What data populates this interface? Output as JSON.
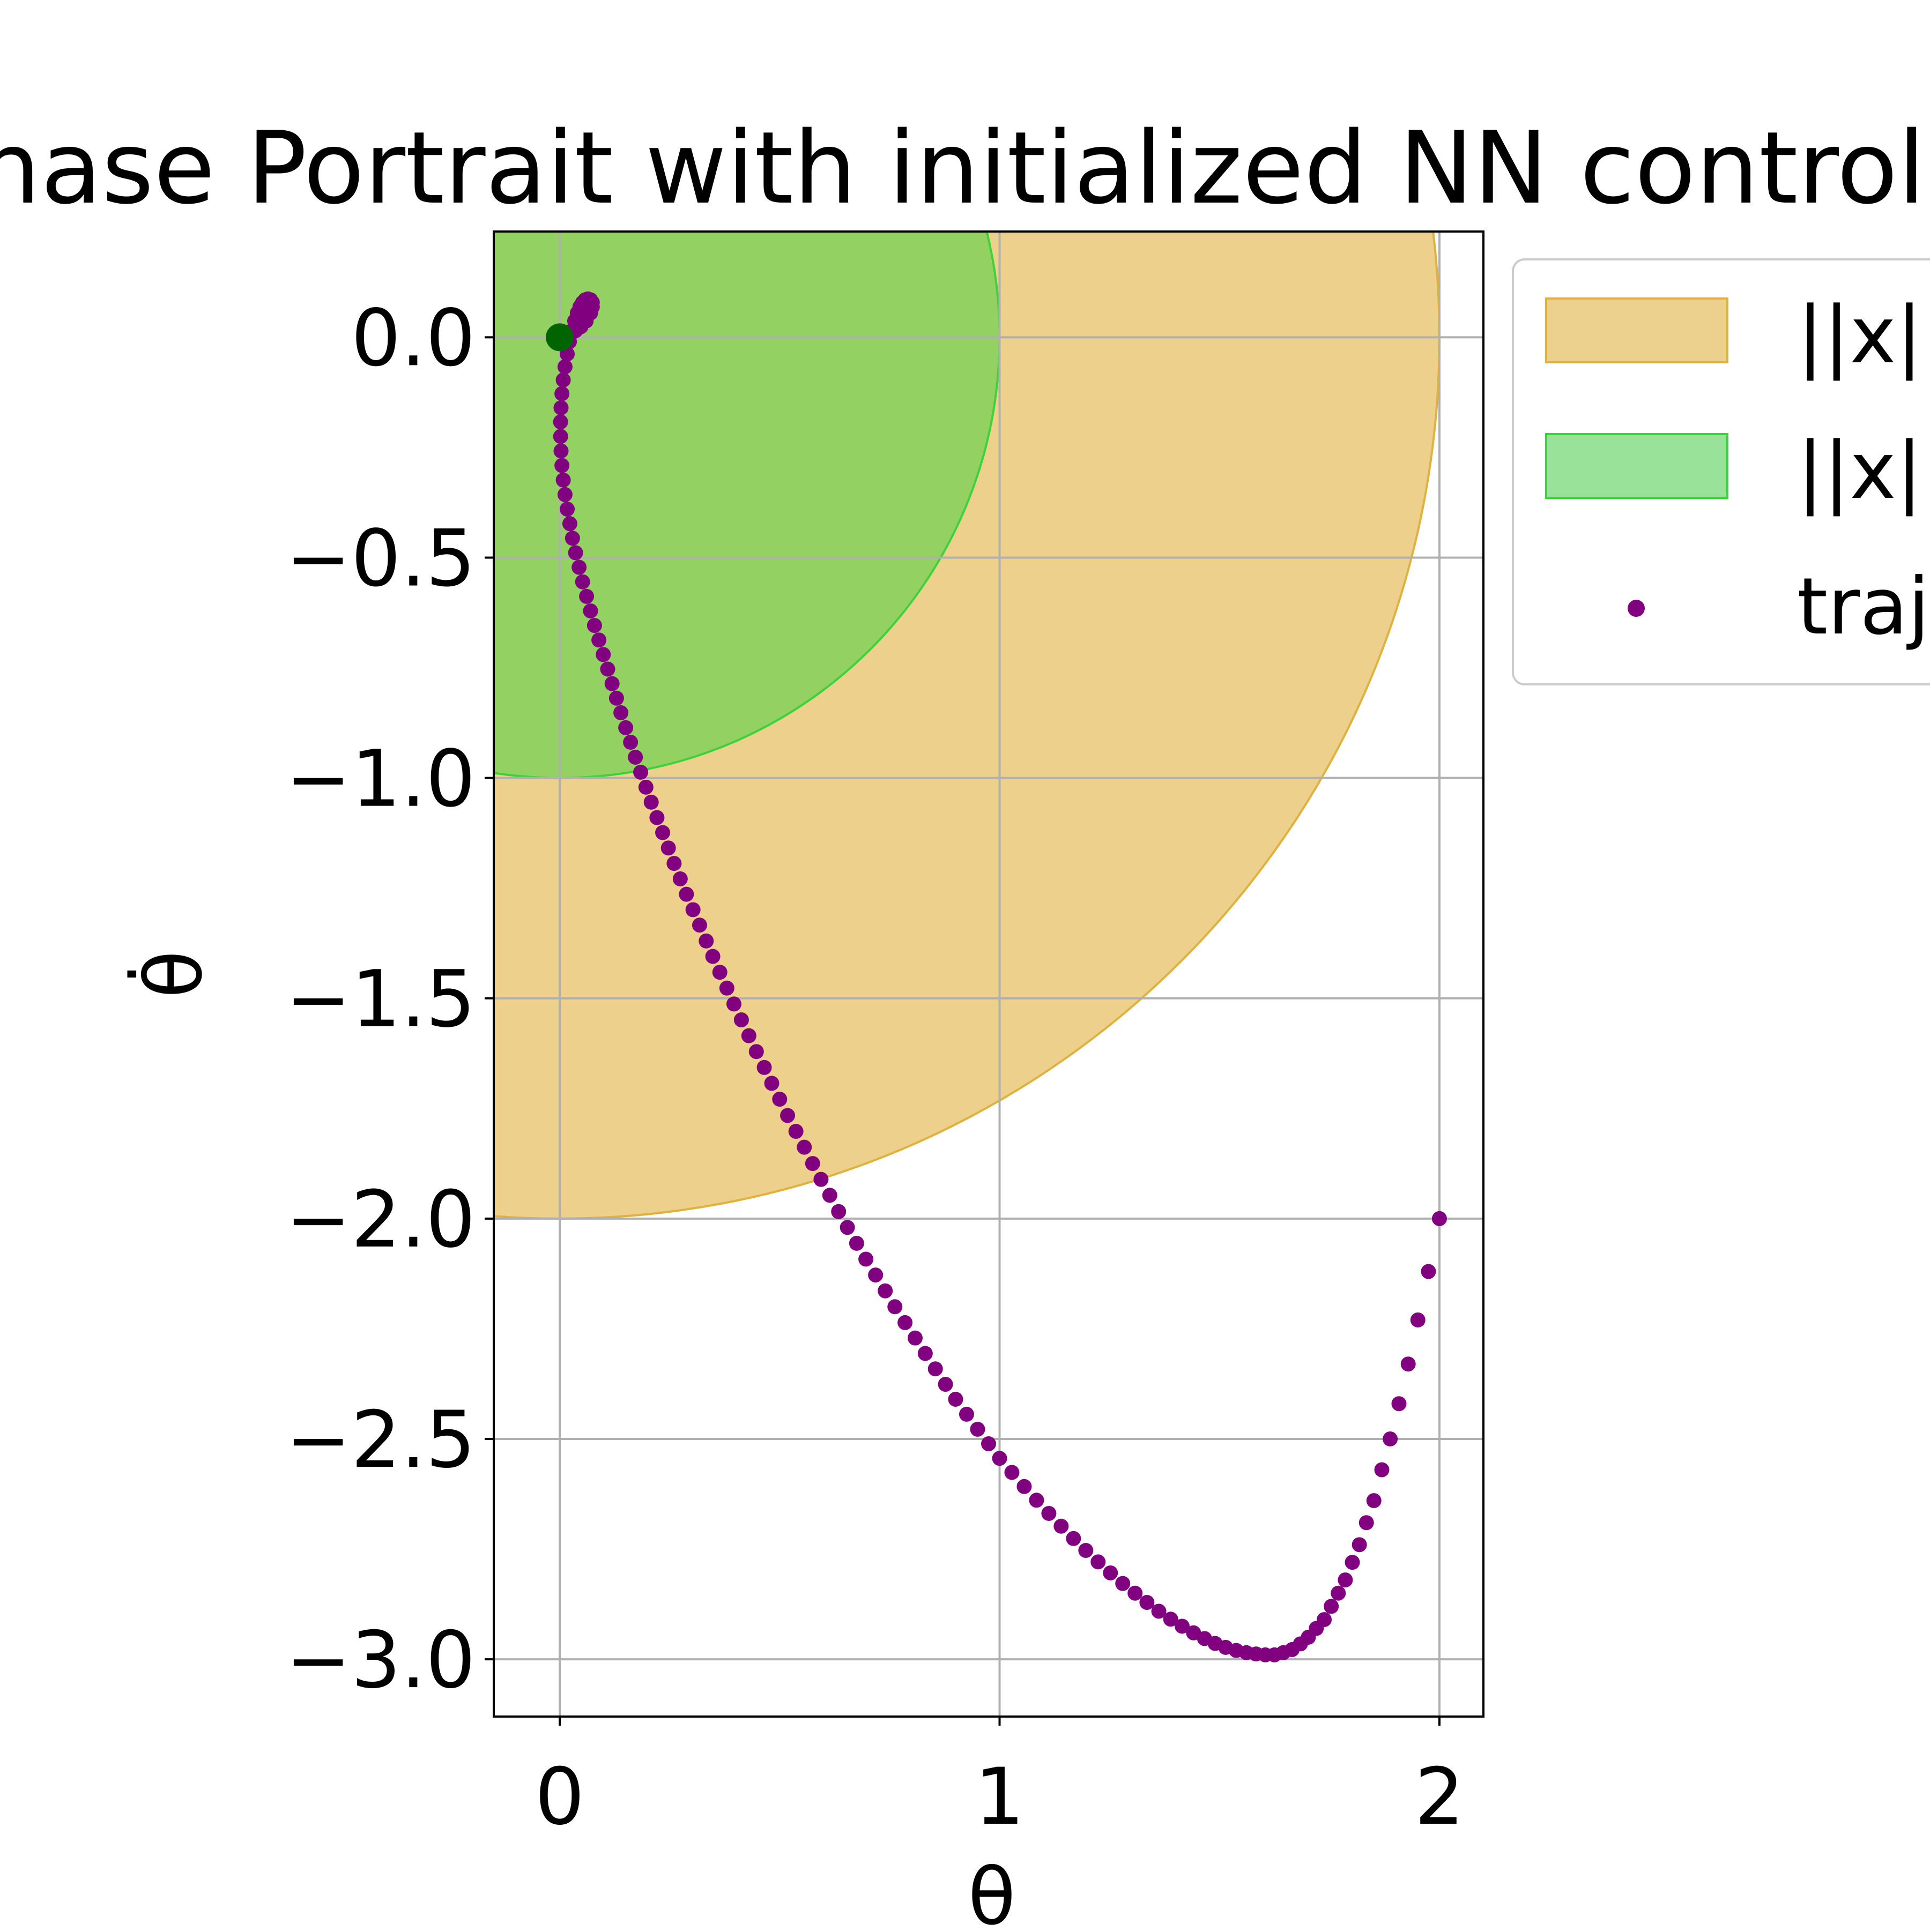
{
  "chart_data": {
    "type": "scatter",
    "title": "Phase Portrait with initialized NN controller",
    "xlabel": "θ",
    "ylabel": "θ̇",
    "xlim": [
      -0.15,
      2.1
    ],
    "ylim": [
      -3.13,
      0.24
    ],
    "x_ticks": [
      0,
      1,
      2
    ],
    "x_tick_labels": [
      "0",
      "1",
      "2"
    ],
    "y_ticks": [
      0.0,
      -0.5,
      -1.0,
      -1.5,
      -2.0,
      -2.5,
      -3.0
    ],
    "y_tick_labels": [
      "0.0",
      "−0.5",
      "−1.0",
      "−1.5",
      "−2.0",
      "−2.5",
      "−3.0"
    ],
    "grid": true,
    "legend_placement": "outside upper right",
    "regions": [
      {
        "legend": "||x||",
        "shape": "circle",
        "center": [
          0,
          0
        ],
        "radius": 2.0,
        "color": "#dfb13e",
        "edge_color": "#dfb13e",
        "alpha": 0.6
      },
      {
        "legend": "||x||",
        "shape": "circle",
        "center": [
          0,
          0
        ],
        "radius": 1.0,
        "color": "#3cd23c",
        "edge_color": "#3cd23c",
        "alpha": 0.5
      }
    ],
    "series": [
      {
        "name": "traj",
        "color": "#800080",
        "marker": "circle",
        "x": [
          2.0,
          1.975,
          1.951,
          1.929,
          1.908,
          1.888,
          1.869,
          1.851,
          1.834,
          1.818,
          1.802,
          1.786,
          1.77,
          1.754,
          1.738,
          1.72,
          1.702,
          1.684,
          1.665,
          1.645,
          1.625,
          1.604,
          1.583,
          1.561,
          1.538,
          1.514,
          1.49,
          1.466,
          1.441,
          1.415,
          1.389,
          1.362,
          1.335,
          1.308,
          1.28,
          1.252,
          1.224,
          1.196,
          1.168,
          1.14,
          1.112,
          1.084,
          1.056,
          1.028,
          1.0,
          0.975,
          0.95,
          0.925,
          0.9,
          0.877,
          0.854,
          0.831,
          0.808,
          0.785,
          0.762,
          0.74,
          0.718,
          0.696,
          0.675,
          0.654,
          0.634,
          0.614,
          0.594,
          0.575,
          0.556,
          0.537,
          0.518,
          0.5,
          0.482,
          0.465,
          0.447,
          0.43,
          0.413,
          0.396,
          0.38,
          0.364,
          0.348,
          0.333,
          0.318,
          0.303,
          0.288,
          0.274,
          0.26,
          0.247,
          0.234,
          0.221,
          0.208,
          0.196,
          0.184,
          0.172,
          0.161,
          0.15,
          0.139,
          0.129,
          0.119,
          0.109,
          0.099,
          0.089,
          0.079,
          0.07,
          0.061,
          0.052,
          0.044,
          0.036,
          0.029,
          0.023,
          0.017,
          0.012,
          0.008,
          0.005,
          0.003,
          0.002,
          0.002,
          0.003,
          0.005,
          0.008,
          0.012,
          0.017,
          0.022,
          0.028,
          0.034,
          0.04,
          0.046,
          0.052,
          0.058,
          0.064,
          0.07,
          0.074,
          0.074,
          0.07,
          0.06,
          0.048,
          0.036,
          0.026,
          0.018,
          0.012,
          0.008,
          0.005,
          0.003
        ],
        "y": [
          -2.0,
          -2.12,
          -2.23,
          -2.33,
          -2.42,
          -2.5,
          -2.57,
          -2.64,
          -2.69,
          -2.74,
          -2.78,
          -2.82,
          -2.85,
          -2.88,
          -2.91,
          -2.93,
          -2.95,
          -2.965,
          -2.978,
          -2.985,
          -2.99,
          -2.99,
          -2.988,
          -2.985,
          -2.98,
          -2.973,
          -2.964,
          -2.953,
          -2.94,
          -2.925,
          -2.909,
          -2.891,
          -2.871,
          -2.85,
          -2.828,
          -2.804,
          -2.779,
          -2.753,
          -2.726,
          -2.698,
          -2.669,
          -2.639,
          -2.608,
          -2.576,
          -2.544,
          -2.511,
          -2.478,
          -2.444,
          -2.41,
          -2.376,
          -2.341,
          -2.306,
          -2.271,
          -2.236,
          -2.2,
          -2.164,
          -2.128,
          -2.092,
          -2.056,
          -2.02,
          -1.984,
          -1.947,
          -1.911,
          -1.875,
          -1.838,
          -1.802,
          -1.766,
          -1.729,
          -1.693,
          -1.657,
          -1.621,
          -1.585,
          -1.549,
          -1.513,
          -1.477,
          -1.441,
          -1.405,
          -1.37,
          -1.334,
          -1.299,
          -1.264,
          -1.229,
          -1.194,
          -1.159,
          -1.124,
          -1.09,
          -1.055,
          -1.021,
          -0.987,
          -0.953,
          -0.919,
          -0.886,
          -0.852,
          -0.819,
          -0.786,
          -0.753,
          -0.72,
          -0.687,
          -0.654,
          -0.621,
          -0.588,
          -0.555,
          -0.522,
          -0.489,
          -0.456,
          -0.423,
          -0.39,
          -0.357,
          -0.324,
          -0.291,
          -0.258,
          -0.225,
          -0.192,
          -0.16,
          -0.128,
          -0.097,
          -0.067,
          -0.038,
          -0.01,
          0.015,
          0.037,
          0.055,
          0.069,
          0.079,
          0.085,
          0.087,
          0.085,
          0.079,
          0.069,
          0.055,
          0.037,
          0.024,
          0.015,
          0.009,
          0.005,
          0.003,
          0.002,
          0.001,
          0.0
        ]
      },
      {
        "name": "",
        "color": "#006400",
        "marker": "circle",
        "x": [
          0.0
        ],
        "y": [
          0.0
        ]
      }
    ]
  },
  "legend": {
    "entries": [
      {
        "label": "||x||",
        "swatch": "#ecd08e"
      },
      {
        "label": "||x||",
        "swatch": "#99e299"
      },
      {
        "label": "traj",
        "swatch": "#800080"
      }
    ]
  }
}
